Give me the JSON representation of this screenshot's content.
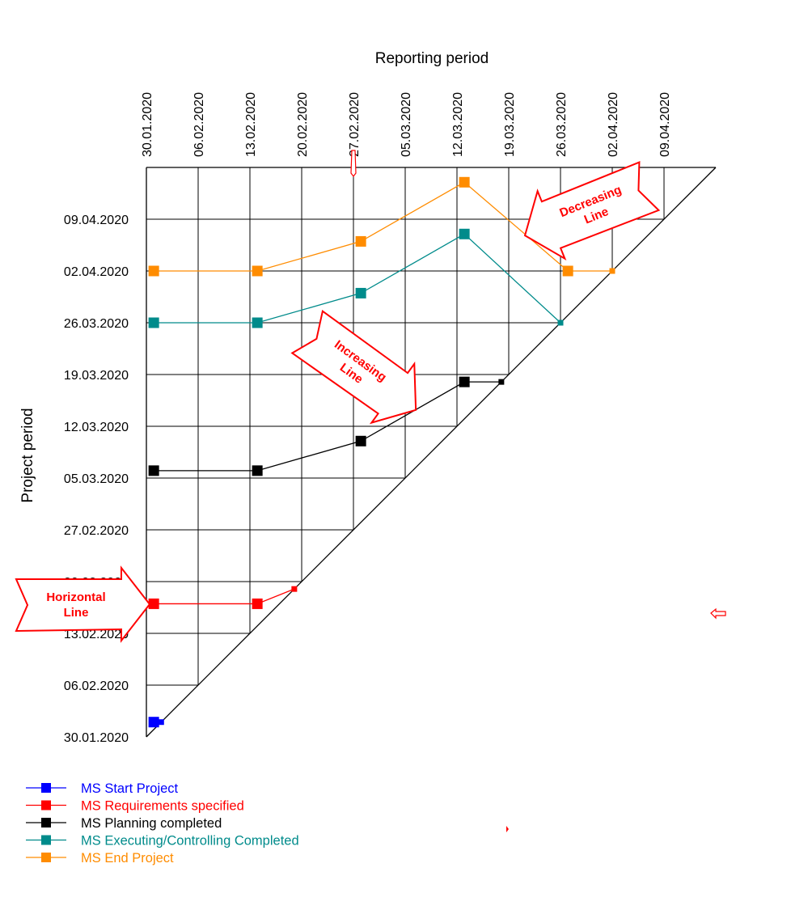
{
  "chart_data": {
    "type": "line",
    "subtype": "milestone-trend-analysis",
    "xlabel": "Reporting period",
    "ylabel": "Project period",
    "x_ticks": [
      "30.01.2020",
      "06.02.2020",
      "13.02.2020",
      "20.02.2020",
      "27.02.2020",
      "05.03.2020",
      "12.03.2020",
      "19.03.2020",
      "26.03.2020",
      "02.04.2020",
      "09.04.2020"
    ],
    "y_ticks": [
      "30.01.2020",
      "06.02.2020",
      "13.02.2020",
      "20.02.2020",
      "27.02.2020",
      "05.03.2020",
      "12.03.2020",
      "19.03.2020",
      "26.03.2020",
      "02.04.2020",
      "09.04.2020"
    ],
    "xlim": [
      "30.01.2020",
      "16.04.2020"
    ],
    "ylim": [
      "30.01.2020",
      "16.04.2020"
    ],
    "grid": true,
    "legend_position": "bottom-left",
    "series": [
      {
        "name": "MS Start Project",
        "color": "#0000FF",
        "points": [
          [
            "31.01.2020",
            "01.02.2020"
          ],
          [
            "01.02.2020",
            "01.02.2020"
          ]
        ]
      },
      {
        "name": "MS Requirements specified",
        "color": "#FF0000",
        "points": [
          [
            "31.01.2020",
            "17.02.2020"
          ],
          [
            "14.02.2020",
            "17.02.2020"
          ],
          [
            "19.02.2020",
            "19.02.2020"
          ]
        ]
      },
      {
        "name": "MS Planning completed",
        "color": "#000000",
        "points": [
          [
            "31.01.2020",
            "06.03.2020"
          ],
          [
            "14.02.2020",
            "06.03.2020"
          ],
          [
            "28.02.2020",
            "10.03.2020"
          ],
          [
            "13.03.2020",
            "18.03.2020"
          ],
          [
            "18.03.2020",
            "18.03.2020"
          ]
        ]
      },
      {
        "name": "MS Executing/Controlling Completed",
        "color": "#008B8B",
        "points": [
          [
            "31.01.2020",
            "26.03.2020"
          ],
          [
            "14.02.2020",
            "26.03.2020"
          ],
          [
            "28.02.2020",
            "30.03.2020"
          ],
          [
            "13.03.2020",
            "07.04.2020"
          ],
          [
            "26.03.2020",
            "26.03.2020"
          ]
        ]
      },
      {
        "name": "MS End Project",
        "color": "#FF8C00",
        "points": [
          [
            "31.01.2020",
            "02.04.2020"
          ],
          [
            "14.02.2020",
            "02.04.2020"
          ],
          [
            "28.02.2020",
            "06.04.2020"
          ],
          [
            "13.03.2020",
            "14.04.2020"
          ],
          [
            "27.03.2020",
            "02.04.2020"
          ],
          [
            "02.04.2020",
            "02.04.2020"
          ]
        ]
      }
    ],
    "annotations": [
      {
        "name": "horizontal",
        "lines": [
          "Horizontal",
          "Line"
        ]
      },
      {
        "name": "increasing",
        "lines": [
          "Increasing",
          "Line"
        ]
      },
      {
        "name": "decreasing",
        "lines": [
          "Decreasing",
          "Line"
        ]
      }
    ],
    "annotation_color": "#FF0000"
  }
}
